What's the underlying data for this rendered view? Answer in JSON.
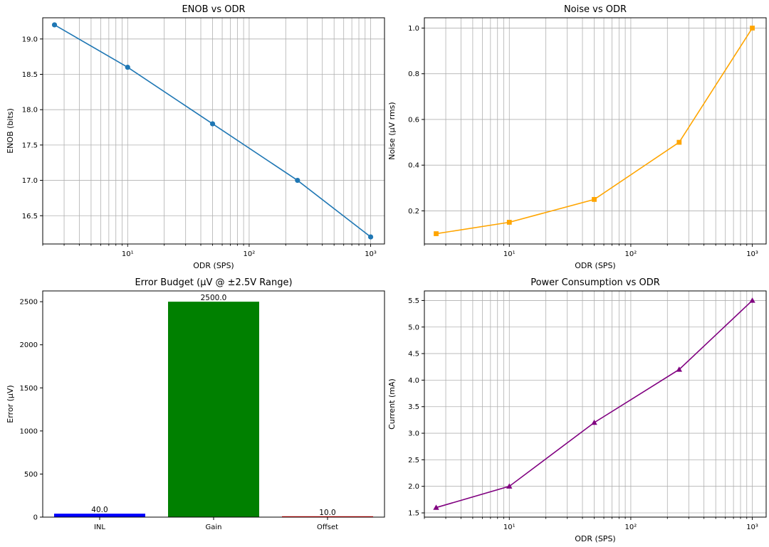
{
  "chart_data": [
    {
      "type": "line",
      "title": "ENOB vs ODR",
      "xlabel": "ODR (SPS)",
      "ylabel": "ENOB (bits)",
      "xscale": "log",
      "xlim": [
        2.0,
        1300
      ],
      "ylim": [
        16.1,
        19.3
      ],
      "yticks": [
        16.5,
        17.0,
        17.5,
        18.0,
        18.5,
        19.0
      ],
      "ytick_labels": [
        "16.5",
        "17.0",
        "17.5",
        "18.0",
        "18.5",
        "19.0"
      ],
      "xticks": [
        10,
        100,
        1000
      ],
      "xtick_labels": [
        "10¹",
        "10²",
        "10³"
      ],
      "grid": true,
      "marker": "circle",
      "color": "#1f77b4",
      "x": [
        2.5,
        10,
        50,
        250,
        1000
      ],
      "y": [
        19.2,
        18.6,
        17.8,
        17.0,
        16.2
      ]
    },
    {
      "type": "line",
      "title": "Noise vs ODR",
      "xlabel": "ODR (SPS)",
      "ylabel": "Noise (µV rms)",
      "xscale": "log",
      "xlim": [
        2.0,
        1300
      ],
      "ylim": [
        0.055,
        1.045
      ],
      "yticks": [
        0.2,
        0.4,
        0.6,
        0.8,
        1.0
      ],
      "ytick_labels": [
        "0.2",
        "0.4",
        "0.6",
        "0.8",
        "1.0"
      ],
      "xticks": [
        10,
        100,
        1000
      ],
      "xtick_labels": [
        "10¹",
        "10²",
        "10³"
      ],
      "grid": true,
      "marker": "square",
      "color": "#ffa500",
      "x": [
        2.5,
        10,
        50,
        250,
        1000
      ],
      "y": [
        0.1,
        0.15,
        0.25,
        0.5,
        1.0
      ]
    },
    {
      "type": "bar",
      "title": "Error Budget (µV @ ±2.5V Range)",
      "xlabel": "",
      "ylabel": "Error (µV)",
      "ylim": [
        0,
        2625
      ],
      "yticks": [
        0,
        500,
        1000,
        1500,
        2000,
        2500
      ],
      "ytick_labels": [
        "0",
        "500",
        "1000",
        "1500",
        "2000",
        "2500"
      ],
      "grid": false,
      "categories": [
        "INL",
        "Gain",
        "Offset"
      ],
      "values": [
        40.0,
        2500.0,
        10.0
      ],
      "value_labels": [
        "40.0",
        "2500.0",
        "10.0"
      ],
      "colors": [
        "#0000ff",
        "#008000",
        "#ff0000"
      ]
    },
    {
      "type": "line",
      "title": "Power Consumption vs ODR",
      "xlabel": "ODR (SPS)",
      "ylabel": "Current (mA)",
      "xscale": "log",
      "xlim": [
        2.0,
        1300
      ],
      "ylim": [
        1.42,
        5.68
      ],
      "yticks": [
        1.5,
        2.0,
        2.5,
        3.0,
        3.5,
        4.0,
        4.5,
        5.0,
        5.5
      ],
      "ytick_labels": [
        "1.5",
        "2.0",
        "2.5",
        "3.0",
        "3.5",
        "4.0",
        "4.5",
        "5.0",
        "5.5"
      ],
      "xticks": [
        10,
        100,
        1000
      ],
      "xtick_labels": [
        "10¹",
        "10²",
        "10³"
      ],
      "grid": true,
      "marker": "triangle",
      "color": "#800080",
      "x": [
        2.5,
        10,
        50,
        250,
        1000
      ],
      "y": [
        1.6,
        2.0,
        3.2,
        4.2,
        5.5
      ]
    }
  ]
}
